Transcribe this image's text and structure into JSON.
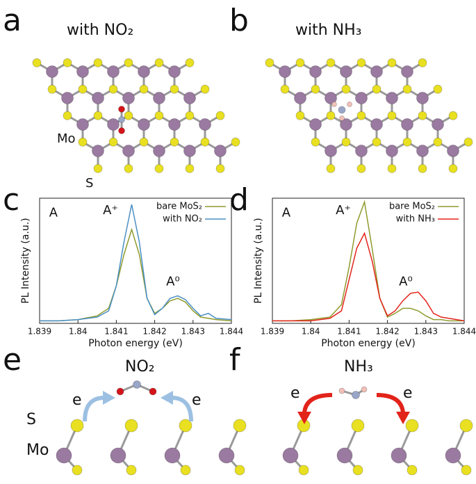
{
  "panels": {
    "a": {
      "label": "a",
      "title": "with NO₂",
      "atoms": [
        "Mo",
        "S"
      ]
    },
    "b": {
      "label": "b",
      "title": "with NH₃"
    },
    "e": {
      "label": "e",
      "title": "NO₂",
      "electrons": [
        "e",
        "e"
      ],
      "atoms": [
        "S",
        "Mo"
      ]
    },
    "f": {
      "label": "f",
      "title": "NH₃",
      "electrons": [
        "e",
        "e"
      ]
    }
  },
  "chart_data": [
    {
      "type": "line",
      "label": "c",
      "xlabel": "Photon energy (eV)",
      "ylabel": "PL Intensity (a.u.)",
      "annotations": [
        "A",
        "A⁺",
        "A⁰"
      ],
      "x": [
        1.839,
        1.8395,
        1.84,
        1.8405,
        1.8408,
        1.841,
        1.8412,
        1.8414,
        1.8416,
        1.8418,
        1.842,
        1.8422,
        1.8424,
        1.8426,
        1.8428,
        1.843,
        1.8432,
        1.8434,
        1.8436,
        1.844
      ],
      "xlim": [
        1.839,
        1.844
      ],
      "xticks": [
        1.839,
        1.84,
        1.841,
        1.842,
        1.843,
        1.844
      ],
      "ylim": [
        0,
        1
      ],
      "series": [
        {
          "name": "bare MoS₂",
          "color": "#8f9a2c",
          "values": [
            0.02,
            0.02,
            0.03,
            0.06,
            0.12,
            0.3,
            0.55,
            0.75,
            0.55,
            0.2,
            0.08,
            0.12,
            0.18,
            0.2,
            0.17,
            0.1,
            0.05,
            0.04,
            0.03,
            0.02
          ]
        },
        {
          "name": "with NO₂",
          "color": "#4a8fc4",
          "values": [
            0.02,
            0.02,
            0.03,
            0.05,
            0.1,
            0.3,
            0.65,
            0.95,
            0.65,
            0.2,
            0.07,
            0.12,
            0.2,
            0.22,
            0.19,
            0.12,
            0.06,
            0.08,
            0.04,
            0.03
          ]
        }
      ]
    },
    {
      "type": "line",
      "label": "d",
      "xlabel": "Photon energy (eV)",
      "ylabel": "PL Intensity (a.u.)",
      "annotations": [
        "A",
        "A⁺",
        "A⁰"
      ],
      "x": [
        1.839,
        1.8395,
        1.84,
        1.8405,
        1.8408,
        1.841,
        1.8412,
        1.8414,
        1.8416,
        1.8418,
        1.842,
        1.8422,
        1.8424,
        1.8426,
        1.8428,
        1.843,
        1.8432,
        1.8434,
        1.8436,
        1.844
      ],
      "xlim": [
        1.839,
        1.844
      ],
      "xticks": [
        1.839,
        1.84,
        1.841,
        1.842,
        1.843,
        1.844
      ],
      "ylim": [
        0,
        1
      ],
      "series": [
        {
          "name": "bare MoS₂",
          "color": "#8f9a2c",
          "values": [
            0.02,
            0.02,
            0.03,
            0.05,
            0.15,
            0.45,
            0.8,
            0.97,
            0.6,
            0.2,
            0.05,
            0.08,
            0.12,
            0.12,
            0.1,
            0.06,
            0.03,
            0.03,
            0.02,
            0.02
          ]
        },
        {
          "name": "with NH₃",
          "color": "#e2231a",
          "values": [
            0.02,
            0.02,
            0.02,
            0.04,
            0.1,
            0.35,
            0.6,
            0.72,
            0.5,
            0.2,
            0.06,
            0.1,
            0.18,
            0.24,
            0.25,
            0.18,
            0.08,
            0.05,
            0.04,
            0.02
          ]
        }
      ]
    }
  ]
}
